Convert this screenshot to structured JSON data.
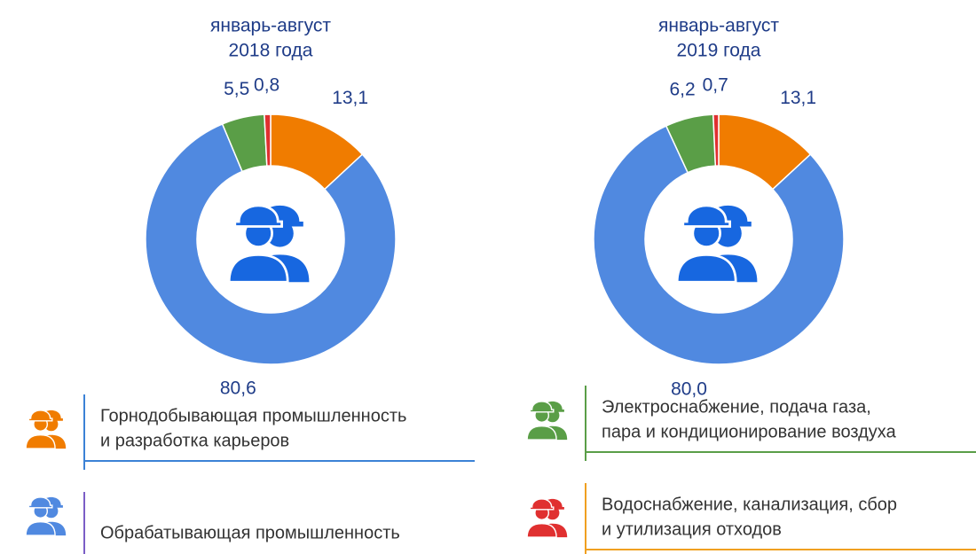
{
  "chart_data": [
    {
      "type": "pie",
      "title": [
        "январь-август",
        "2018 года"
      ],
      "values": [
        13.1,
        80.6,
        5.5,
        0.8
      ],
      "value_labels": [
        "13,1",
        "80,6",
        "5,5",
        "0,8"
      ]
    },
    {
      "type": "pie",
      "title": [
        "январь-август",
        "2019 года"
      ],
      "values": [
        13.1,
        80.0,
        6.2,
        0.7
      ],
      "value_labels": [
        "13,1",
        "80,0",
        "6,2",
        "0,7"
      ]
    }
  ],
  "legend": {
    "items": [
      {
        "lines": [
          "Горнодобывающая промышленность",
          "и разработка карьеров"
        ],
        "color": "#f07c00"
      },
      {
        "lines": [
          "Обрабатывающая промышленность"
        ],
        "color": "#5089e0"
      },
      {
        "lines": [
          "Электроснабжение, подача газа,",
          "пара и кондиционирование воздуха"
        ],
        "color": "#5a9e47"
      },
      {
        "lines": [
          "Водоснабжение, канализация, сбор",
          "и утилизация отходов"
        ],
        "color": "#e03030"
      }
    ]
  }
}
